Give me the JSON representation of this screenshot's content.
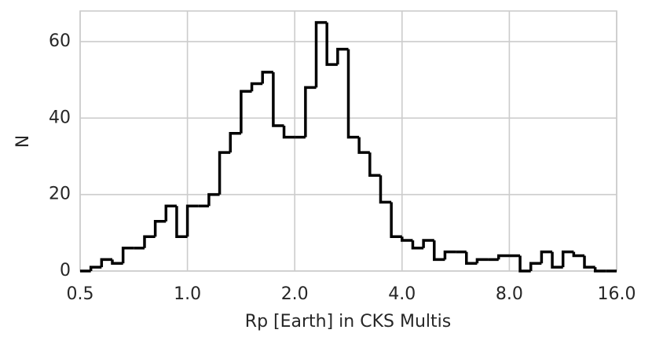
{
  "chart_data": {
    "type": "histogram",
    "xlabel": "Rp [Earth] in CKS Multis",
    "ylabel": "N",
    "bins": [
      0.5,
      0.5359,
      0.5743,
      0.6156,
      0.6598,
      0.7071,
      0.7579,
      0.8123,
      0.8706,
      0.933,
      1.0,
      1.0718,
      1.1487,
      1.2311,
      1.3195,
      1.4142,
      1.5157,
      1.6245,
      1.7411,
      1.8661,
      2.0,
      2.1435,
      2.2974,
      2.4623,
      2.639,
      2.8284,
      3.0314,
      3.249,
      3.4822,
      3.7321,
      4.0,
      4.2871,
      4.5948,
      4.9246,
      5.278,
      5.6569,
      6.0629,
      6.498,
      6.9644,
      7.4643,
      8.0,
      8.5742,
      9.1896,
      9.8492,
      10.5561,
      11.3137,
      12.1257,
      12.996,
      13.9288,
      14.9285,
      16.0
    ],
    "values": [
      0,
      1,
      3,
      2,
      6,
      6,
      9,
      13,
      17,
      9,
      17,
      17,
      20,
      31,
      36,
      47,
      49,
      52,
      38,
      35,
      35,
      48,
      65,
      54,
      58,
      35,
      31,
      25,
      18,
      9,
      8,
      6,
      8,
      3,
      5,
      5,
      2,
      3,
      3,
      4,
      4,
      0,
      2,
      5,
      1,
      5,
      4,
      1,
      0,
      0
    ],
    "color": "#000000",
    "xscale": "log",
    "xlim": [
      0.5,
      16
    ],
    "xticks": [
      0.5,
      {
        "value": 1,
        "label": "1.0"
      },
      {
        "value": 2,
        "label": "2.0"
      },
      {
        "value": 4,
        "label": "4.0"
      },
      {
        "value": 8,
        "label": "8.0"
      },
      {
        "value": 16,
        "label": "16.0"
      }
    ],
    "ylim": [
      0,
      68
    ],
    "yticks": [
      0,
      20,
      40,
      60
    ],
    "grid": true
  }
}
